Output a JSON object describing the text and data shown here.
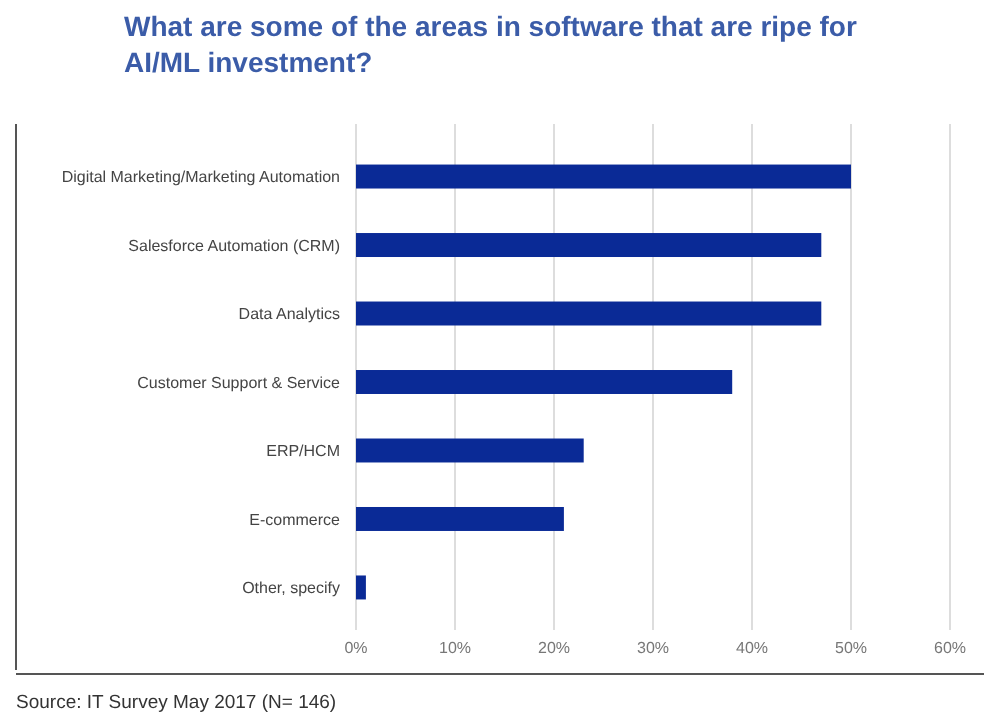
{
  "chart_data": {
    "type": "bar",
    "orientation": "horizontal",
    "title": "What are some of the areas in software that are ripe for AI/ML investment?",
    "categories": [
      "Digital Marketing/Marketing Automation",
      "Salesforce Automation (CRM)",
      "Data Analytics",
      "Customer Support & Service",
      "ERP/HCM",
      "E-commerce",
      "Other, specify"
    ],
    "values": [
      50,
      47,
      47,
      38,
      23,
      21,
      1
    ],
    "color": "#0a2a96",
    "xlim": [
      0,
      60
    ],
    "xticks": [
      {
        "value": 0,
        "label": "0%"
      },
      {
        "value": 10,
        "label": "10%"
      },
      {
        "value": 20,
        "label": "20%"
      },
      {
        "value": 30,
        "label": "30%"
      },
      {
        "value": 40,
        "label": "40%"
      },
      {
        "value": 50,
        "label": "50%"
      },
      {
        "value": 60,
        "label": "60%"
      }
    ],
    "grid": "x",
    "annotations": [
      "Source: IT Survey May 2017 (N= 146)"
    ]
  }
}
